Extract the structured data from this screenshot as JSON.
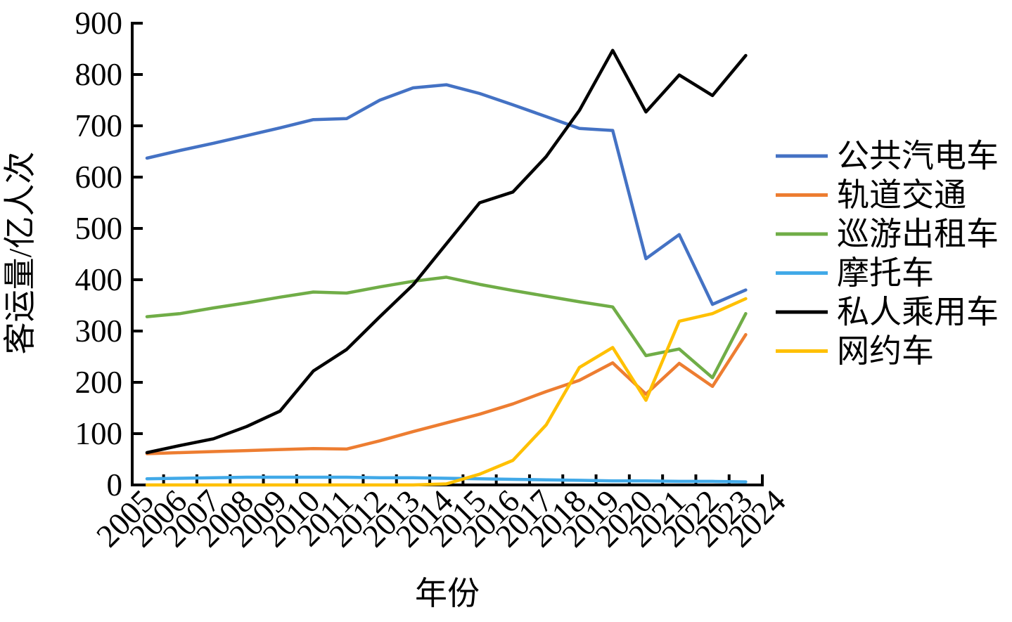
{
  "figure": {
    "background": "#ffffff",
    "axis_color": "#000000"
  },
  "chart_data": {
    "type": "line",
    "title": "",
    "xlabel": "年份",
    "ylabel": "客运量/亿人次",
    "x_labels": [
      "2005",
      "2006",
      "2007",
      "2008",
      "2009",
      "2010",
      "2011",
      "2012",
      "2013",
      "2014",
      "2015",
      "2016",
      "2017",
      "2018",
      "2019",
      "2020",
      "2021",
      "2022",
      "2023",
      "2024"
    ],
    "data_years": [
      "2005",
      "2006",
      "2007",
      "2008",
      "2009",
      "2010",
      "2011",
      "2012",
      "2013",
      "2014",
      "2015",
      "2016",
      "2017",
      "2018",
      "2019",
      "2020",
      "2021",
      "2022",
      "2023"
    ],
    "ylim": [
      0,
      900
    ],
    "yticks": [
      0,
      100,
      200,
      300,
      400,
      500,
      600,
      700,
      800,
      900
    ],
    "grid": false,
    "legend_position": "right",
    "series": [
      {
        "name": "公共汽电车",
        "slug": "public-bus",
        "color": "#4472C4",
        "values": [
          637,
          652,
          666,
          681,
          696,
          712,
          714,
          750,
          774,
          780,
          763,
          741,
          718,
          695,
          691,
          441,
          488,
          352,
          380
        ]
      },
      {
        "name": "轨道交通",
        "slug": "rail-transit",
        "color": "#ED7D31",
        "values": [
          61,
          63,
          65,
          67,
          69,
          71,
          70,
          86,
          104,
          121,
          138,
          158,
          182,
          204,
          238,
          177,
          237,
          192,
          293
        ]
      },
      {
        "name": "巡游出租车",
        "slug": "cruising-taxi",
        "color": "#70AD47",
        "values": [
          328,
          334,
          345,
          355,
          366,
          376,
          374,
          386,
          397,
          405,
          391,
          379,
          368,
          357,
          347,
          252,
          265,
          209,
          334
        ]
      },
      {
        "name": "摩托车",
        "slug": "motorcycle",
        "color": "#41A9E8",
        "values": [
          12,
          13,
          14,
          15,
          15,
          15,
          15,
          14,
          14,
          13,
          12,
          11,
          10,
          9,
          8,
          8,
          7,
          7,
          6
        ]
      },
      {
        "name": "私人乘用车",
        "slug": "private-car",
        "color": "#000000",
        "values": [
          63,
          77,
          90,
          114,
          144,
          222,
          264,
          328,
          390,
          470,
          550,
          571,
          640,
          730,
          847,
          727,
          799,
          759,
          837
        ]
      },
      {
        "name": "网约车",
        "slug": "ride-hailing",
        "color": "#FFC000",
        "values": [
          0,
          0,
          0,
          0,
          0,
          0,
          0,
          0,
          0,
          2,
          21,
          48,
          117,
          229,
          268,
          165,
          319,
          334,
          363
        ]
      }
    ]
  }
}
